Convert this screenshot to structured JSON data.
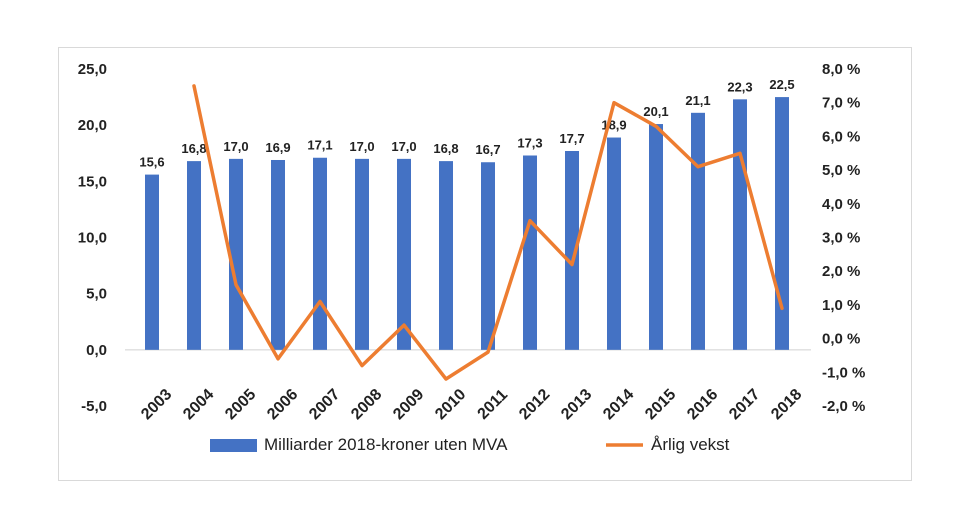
{
  "chart_data": {
    "type": "bar",
    "categories": [
      "2003",
      "2004",
      "2005",
      "2006",
      "2007",
      "2008",
      "2009",
      "2010",
      "2011",
      "2012",
      "2013",
      "2014",
      "2015",
      "2016",
      "2017",
      "2018"
    ],
    "series": [
      {
        "name": "Milliarder 2018-kroner uten MVA",
        "type": "bar",
        "axis": "left",
        "color": "#4472C4",
        "values": [
          15.6,
          16.8,
          17.0,
          16.9,
          17.1,
          17.0,
          17.0,
          16.8,
          16.7,
          17.3,
          17.7,
          18.9,
          20.1,
          21.1,
          22.3,
          22.5
        ],
        "labels": [
          "15,6",
          "16,8",
          "17,0",
          "16,9",
          "17,1",
          "17,0",
          "17,0",
          "16,8",
          "16,7",
          "17,3",
          "17,7",
          "18,9",
          "20,1",
          "21,1",
          "22,3",
          "22,5"
        ]
      },
      {
        "name": "Årlig vekst",
        "type": "line",
        "axis": "right",
        "color": "#ED7D31",
        "x": [
          "2004",
          "2005",
          "2006",
          "2007",
          "2008",
          "2009",
          "2010",
          "2011",
          "2012",
          "2013",
          "2014",
          "2015",
          "2016",
          "2017",
          "2018"
        ],
        "values": [
          7.5,
          1.6,
          -0.6,
          1.1,
          -0.8,
          0.4,
          -1.2,
          -0.4,
          3.5,
          2.2,
          7.0,
          6.3,
          5.1,
          5.5,
          0.9
        ]
      }
    ],
    "y_left": {
      "range": [
        -5,
        25
      ],
      "ticks": [
        -5,
        0,
        5,
        10,
        15,
        20,
        25
      ],
      "tick_labels": [
        "-5,0",
        "0,0",
        "5,0",
        "10,0",
        "15,0",
        "20,0",
        "25,0"
      ]
    },
    "y_right": {
      "range": [
        -2,
        8
      ],
      "ticks": [
        -2,
        -1,
        0,
        1,
        2,
        3,
        4,
        5,
        6,
        7,
        8
      ],
      "tick_labels": [
        "-2,0 %",
        "-1,0 %",
        "0,0 %",
        "1,0 %",
        "2,0 %",
        "3,0 %",
        "4,0 %",
        "5,0 %",
        "6,0 %",
        "7,0 %",
        "8,0 %"
      ]
    },
    "title": "",
    "xlabel": "",
    "ylabel": "",
    "grid": false,
    "legend_position": "bottom"
  }
}
